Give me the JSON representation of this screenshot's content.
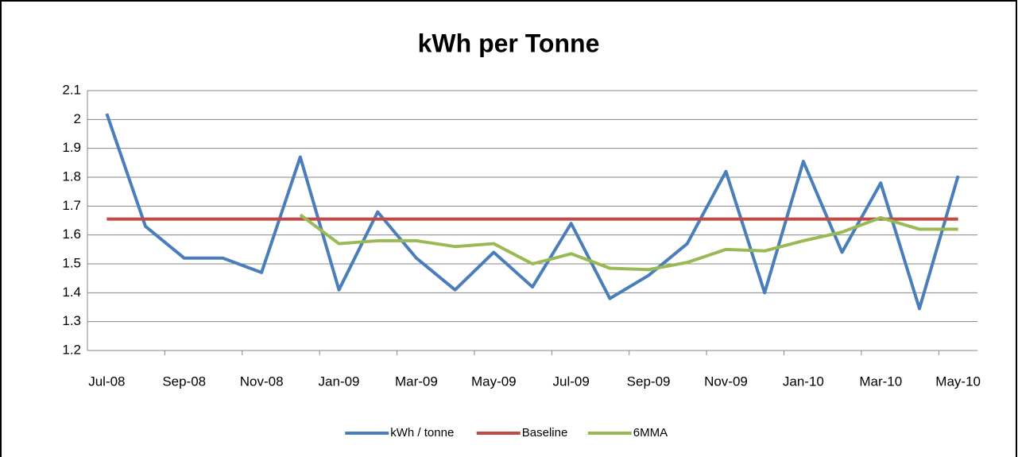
{
  "chart_data": {
    "type": "line",
    "title": "kWh per Tonne",
    "categories": [
      "Jul-08",
      null,
      "Sep-08",
      null,
      "Nov-08",
      null,
      "Jan-09",
      null,
      "Mar-09",
      null,
      "May-09",
      null,
      "Jul-09",
      null,
      "Sep-09",
      null,
      "Nov-09",
      null,
      "Jan-10",
      null,
      "Mar-10",
      null,
      "May-10"
    ],
    "series": [
      {
        "name": "kWh / tonne",
        "color": "#4a7ebb",
        "values": [
          2.02,
          1.63,
          1.52,
          1.52,
          1.47,
          1.87,
          1.41,
          1.68,
          1.52,
          1.41,
          1.54,
          1.42,
          1.64,
          1.38,
          1.46,
          1.57,
          1.82,
          1.4,
          1.855,
          1.54,
          1.78,
          1.345,
          1.805
        ]
      },
      {
        "name": "Baseline",
        "color": "#be4b48",
        "values": [
          1.655,
          1.655,
          1.655,
          1.655,
          1.655,
          1.655,
          1.655,
          1.655,
          1.655,
          1.655,
          1.655,
          1.655,
          1.655,
          1.655,
          1.655,
          1.655,
          1.655,
          1.655,
          1.655,
          1.655,
          1.655,
          1.655,
          1.655
        ]
      },
      {
        "name": "6MMA",
        "color": "#98b954",
        "values": [
          null,
          null,
          null,
          null,
          null,
          1.67,
          1.57,
          1.58,
          1.58,
          1.56,
          1.57,
          1.5,
          1.535,
          1.485,
          1.48,
          1.505,
          1.55,
          1.545,
          1.58,
          1.61,
          1.66,
          1.62,
          1.62
        ]
      }
    ],
    "ylim": [
      1.2,
      2.1
    ],
    "yticks": [
      {
        "value": 1.2,
        "label": "1.2"
      },
      1.3,
      1.4,
      1.5,
      1.6,
      1.7,
      1.8,
      1.9,
      2,
      2.1
    ],
    "grid": true,
    "legend": "bottom"
  }
}
